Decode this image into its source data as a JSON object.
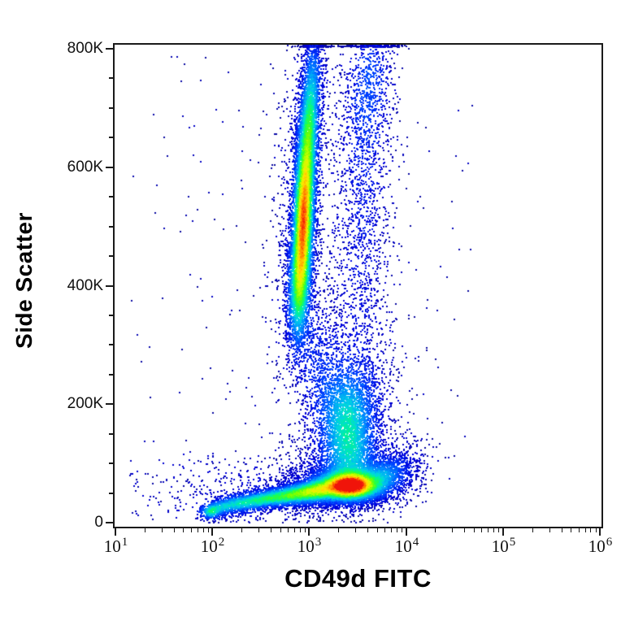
{
  "figure": {
    "background": "#ffffff",
    "frame_color": "#1a1a1a",
    "text_color": "#111111"
  },
  "chart_data": {
    "type": "scatter",
    "subtype": "flow-cytometry-pseudocolor-density",
    "title": "",
    "xlabel": "CD49d FITC",
    "ylabel": "Side Scatter",
    "x_axis": {
      "title": "CD49d FITC",
      "scale": "log10",
      "range": [
        10,
        1000000
      ],
      "tick_base": "10",
      "decades": [
        1,
        2,
        3,
        4,
        5,
        6
      ],
      "minor_multipliers": [
        2,
        3,
        4,
        5,
        6,
        7,
        8,
        9
      ]
    },
    "y_axis": {
      "title": "Side Scatter",
      "scale": "linear",
      "range": [
        0,
        800000
      ],
      "ticks": [
        {
          "value": 0,
          "label": "0"
        },
        {
          "value": 200000,
          "label": "200K"
        },
        {
          "value": 400000,
          "label": "400K"
        },
        {
          "value": 600000,
          "label": "600K"
        },
        {
          "value": 800000,
          "label": "800K"
        }
      ],
      "minor_step": 50000
    },
    "legend": "none",
    "grid": false,
    "dot_size_px": 2,
    "level_jitter": 0.07,
    "seed": 42,
    "palette_stops": [
      [
        0.0,
        [
          10,
          10,
          160
        ]
      ],
      [
        0.08,
        [
          0,
          0,
          220
        ]
      ],
      [
        0.18,
        [
          0,
          60,
          255
        ]
      ],
      [
        0.28,
        [
          0,
          140,
          255
        ]
      ],
      [
        0.38,
        [
          0,
          210,
          230
        ]
      ],
      [
        0.46,
        [
          0,
          245,
          150
        ]
      ],
      [
        0.54,
        [
          40,
          255,
          60
        ]
      ],
      [
        0.62,
        [
          120,
          255,
          0
        ]
      ],
      [
        0.7,
        [
          200,
          255,
          0
        ]
      ],
      [
        0.78,
        [
          255,
          230,
          0
        ]
      ],
      [
        0.86,
        [
          255,
          170,
          0
        ]
      ],
      [
        0.93,
        [
          255,
          100,
          0
        ]
      ],
      [
        1.0,
        [
          240,
          20,
          10
        ]
      ]
    ],
    "populations": [
      {
        "name": "background-sparse-wide",
        "shape": "uniform",
        "log_x_range": [
          1.15,
          4.7
        ],
        "ssc_range": [
          5000,
          790000
        ],
        "count": 230,
        "peak_level": 0.02
      },
      {
        "name": "background-left-low",
        "shape": "uniform",
        "log_x_range": [
          1.15,
          2.5
        ],
        "ssc_range": [
          2000,
          115000
        ],
        "count": 140,
        "peak_level": 0.02
      },
      {
        "name": "debris-left-low",
        "shape": "gaussian",
        "mean_log_x": 2.3,
        "mean_ssc": 38000,
        "sd_log_x": 0.3,
        "sd_ssc": 30000,
        "corr": 0.2,
        "count": 300,
        "peak_level": 0.04,
        "clamp_top": false
      },
      {
        "name": "outlier-dot-high-right",
        "shape": "gaussian",
        "mean_log_x": 4.52,
        "mean_ssc": 620000,
        "sd_log_x": 0.005,
        "sd_ssc": 1500,
        "corr": 0,
        "count": 1,
        "peak_level": 0.02,
        "clamp_top": false
      },
      {
        "name": "granulocyte-halo",
        "shape": "gaussian",
        "mean_log_x": 2.93,
        "mean_ssc": 560000,
        "sd_log_x": 0.17,
        "sd_ssc": 165000,
        "corr": 0.35,
        "count": 900,
        "peak_level": 0.05,
        "clamp_top": true
      },
      {
        "name": "right-trail-band",
        "shape": "gaussian",
        "mean_log_x": 3.55,
        "mean_ssc": 530000,
        "sd_log_x": 0.17,
        "sd_ssc": 185000,
        "corr": 0.25,
        "count": 1500,
        "peak_level": 0.09,
        "clamp_top": true
      },
      {
        "name": "right-trail-top-clump",
        "shape": "gaussian",
        "mean_log_x": 3.62,
        "mean_ssc": 745000,
        "sd_log_x": 0.13,
        "sd_ssc": 70000,
        "corr": 0.3,
        "count": 550,
        "peak_level": 0.13,
        "clamp_top": true
      },
      {
        "name": "granulocyte-debris-trail",
        "shape": "gaussian",
        "mean_log_x": 3.1,
        "mean_ssc": 265000,
        "sd_log_x": 0.17,
        "sd_ssc": 75000,
        "corr": -0.45,
        "count": 750,
        "peak_level": 0.1,
        "clamp_top": false
      },
      {
        "name": "granulocytes-lower",
        "shape": "gaussian",
        "mean_log_x": 2.89,
        "mean_ssc": 392000,
        "sd_log_x": 0.068,
        "sd_ssc": 55000,
        "corr": 0.2,
        "count": 1500,
        "peak_level": 0.32,
        "clamp_top": false
      },
      {
        "name": "granulocytes-core",
        "shape": "gaussian",
        "mean_log_x": 2.94,
        "mean_ssc": 505000,
        "sd_log_x": 0.062,
        "sd_ssc": 80000,
        "corr": 0.3,
        "count": 4800,
        "peak_level": 0.8,
        "clamp_top": false
      },
      {
        "name": "granulocytes-upper",
        "shape": "gaussian",
        "mean_log_x": 3.0,
        "mean_ssc": 672000,
        "sd_log_x": 0.068,
        "sd_ssc": 85000,
        "corr": 0.45,
        "count": 3000,
        "peak_level": 0.42,
        "clamp_top": true
      },
      {
        "name": "monocyte-halo",
        "shape": "gaussian",
        "mean_log_x": 3.42,
        "mean_ssc": 195000,
        "sd_log_x": 0.27,
        "sd_ssc": 80000,
        "corr": 0.1,
        "count": 900,
        "peak_level": 0.07,
        "clamp_top": false
      },
      {
        "name": "monocytes",
        "shape": "gaussian",
        "mean_log_x": 3.4,
        "mean_ssc": 170000,
        "sd_log_x": 0.165,
        "sd_ssc": 50000,
        "corr": 0.1,
        "count": 2400,
        "peak_level": 0.3,
        "clamp_top": false
      },
      {
        "name": "monocyte-lymph-bridge",
        "shape": "gaussian",
        "mean_log_x": 3.45,
        "mean_ssc": 112000,
        "sd_log_x": 0.15,
        "sd_ssc": 28000,
        "corr": 0,
        "count": 550,
        "peak_level": 0.15,
        "clamp_top": false
      },
      {
        "name": "lymphocyte-halo",
        "shape": "gaussian",
        "mean_log_x": 3.3,
        "mean_ssc": 70000,
        "sd_log_x": 0.33,
        "sd_ssc": 30000,
        "corr": 0.2,
        "count": 2200,
        "peak_level": 0.1,
        "clamp_top": false
      },
      {
        "name": "dim-tail-far-left-clump",
        "shape": "gaussian",
        "mean_log_x": 1.98,
        "mean_ssc": 18000,
        "sd_log_x": 0.06,
        "sd_ssc": 7000,
        "corr": 0,
        "count": 200,
        "peak_level": 0.3,
        "clamp_top": false
      },
      {
        "name": "dim-tail-5",
        "shape": "gaussian",
        "mean_log_x": 2.08,
        "mean_ssc": 26000,
        "sd_log_x": 0.1,
        "sd_ssc": 8000,
        "corr": 0.3,
        "count": 300,
        "peak_level": 0.24,
        "clamp_top": false
      },
      {
        "name": "dim-tail-4",
        "shape": "gaussian",
        "mean_log_x": 2.3,
        "mean_ssc": 33000,
        "sd_log_x": 0.12,
        "sd_ssc": 8500,
        "corr": 0.3,
        "count": 600,
        "peak_level": 0.3,
        "clamp_top": false
      },
      {
        "name": "dim-tail-3",
        "shape": "gaussian",
        "mean_log_x": 2.55,
        "mean_ssc": 40000,
        "sd_log_x": 0.12,
        "sd_ssc": 9000,
        "corr": 0.3,
        "count": 850,
        "peak_level": 0.36,
        "clamp_top": false
      },
      {
        "name": "dim-tail-2",
        "shape": "gaussian",
        "mean_log_x": 2.8,
        "mean_ssc": 46000,
        "sd_log_x": 0.13,
        "sd_ssc": 10000,
        "corr": 0.25,
        "count": 1250,
        "peak_level": 0.42,
        "clamp_top": false
      },
      {
        "name": "dim-tail-1",
        "shape": "gaussian",
        "mean_log_x": 3.05,
        "mean_ssc": 53000,
        "sd_log_x": 0.13,
        "sd_ssc": 11000,
        "corr": 0.2,
        "count": 1800,
        "peak_level": 0.5,
        "clamp_top": false
      },
      {
        "name": "lymph-bright-right-edge",
        "shape": "gaussian",
        "mean_log_x": 3.78,
        "mean_ssc": 78000,
        "sd_log_x": 0.13,
        "sd_ssc": 20000,
        "corr": 0.3,
        "count": 800,
        "peak_level": 0.22,
        "clamp_top": false
      },
      {
        "name": "lymph-right-sparse",
        "shape": "gaussian",
        "mean_log_x": 4.0,
        "mean_ssc": 85000,
        "sd_log_x": 0.13,
        "sd_ssc": 30000,
        "corr": 0.3,
        "count": 260,
        "peak_level": 0.05,
        "clamp_top": false
      },
      {
        "name": "lymphocytes-main",
        "shape": "gaussian",
        "mean_log_x": 3.42,
        "mean_ssc": 62000,
        "sd_log_x": 0.165,
        "sd_ssc": 13500,
        "corr": 0.05,
        "count": 8200,
        "peak_level": 1.1,
        "clamp_top": false
      }
    ]
  }
}
